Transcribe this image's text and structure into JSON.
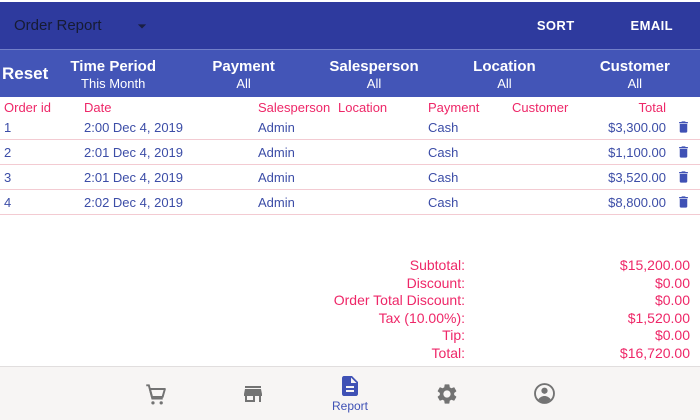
{
  "colors": {
    "app_bar_bg": "#2e3a9e",
    "filter_bar_bg": "#4355b7",
    "pink": "#ee2768",
    "indigo": "#3f51b5",
    "row_text": "#3c4da7",
    "nav_icon_gray": "#737373"
  },
  "app_bar": {
    "spinner_value": "Order Report",
    "sort_label": "SORT",
    "email_label": "EMAIL"
  },
  "filter_bar": {
    "reset_label": "Reset",
    "filters": [
      {
        "label": "Time Period",
        "value": "This Month"
      },
      {
        "label": "Payment",
        "value": "All"
      },
      {
        "label": "Salesperson",
        "value": "All"
      },
      {
        "label": "Location",
        "value": "All"
      },
      {
        "label": "Customer",
        "value": "All"
      }
    ]
  },
  "table": {
    "columns": [
      "Order id",
      "Date",
      "Salesperson",
      "Location",
      "Payment",
      "Customer",
      "Total"
    ],
    "rows": [
      {
        "order_id": "1",
        "date": "2:00 Dec 4, 2019",
        "salesperson": "Admin",
        "location": "",
        "payment": "Cash",
        "customer": "",
        "total": "$3,300.00"
      },
      {
        "order_id": "2",
        "date": "2:01 Dec 4, 2019",
        "salesperson": "Admin",
        "location": "",
        "payment": "Cash",
        "customer": "",
        "total": "$1,100.00"
      },
      {
        "order_id": "3",
        "date": "2:01 Dec 4, 2019",
        "salesperson": "Admin",
        "location": "",
        "payment": "Cash",
        "customer": "",
        "total": "$3,520.00"
      },
      {
        "order_id": "4",
        "date": "2:02 Dec 4, 2019",
        "salesperson": "Admin",
        "location": "",
        "payment": "Cash",
        "customer": "",
        "total": "$8,800.00"
      }
    ]
  },
  "summary": {
    "rows": [
      {
        "label": "Subtotal:",
        "value": "$15,200.00"
      },
      {
        "label": "Discount:",
        "value": "$0.00"
      },
      {
        "label": "Order Total Discount:",
        "value": "$0.00"
      },
      {
        "label": "Tax (10.00%):",
        "value": "$1,520.00"
      },
      {
        "label": "Tip:",
        "value": "$0.00"
      },
      {
        "label": "Total:",
        "value": "$16,720.00"
      }
    ]
  },
  "bottom_nav": {
    "items": [
      {
        "icon": "shopping-cart",
        "label": "",
        "active": false
      },
      {
        "icon": "store",
        "label": "",
        "active": false
      },
      {
        "icon": "report-document",
        "label": "Report",
        "active": true
      },
      {
        "icon": "settings",
        "label": "",
        "active": false
      },
      {
        "icon": "account",
        "label": "",
        "active": false
      }
    ]
  }
}
